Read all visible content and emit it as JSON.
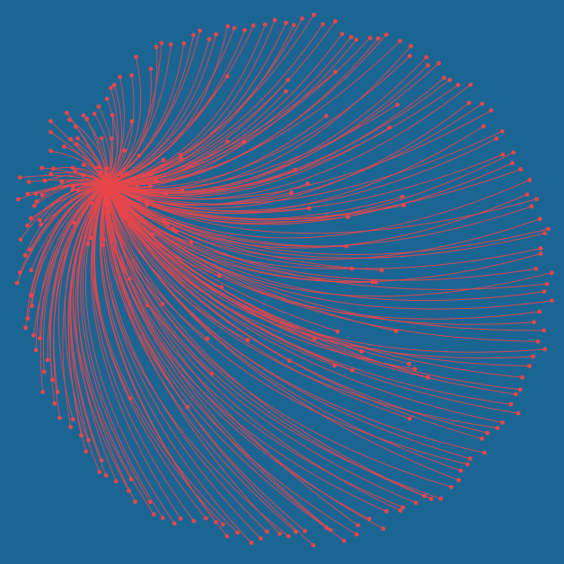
{
  "diagram": {
    "type": "radial-edge-bundle",
    "background_color": "#1b6593",
    "edge_color": "#e8464a",
    "node_color": "#e8464a",
    "hub_count": 1
  }
}
